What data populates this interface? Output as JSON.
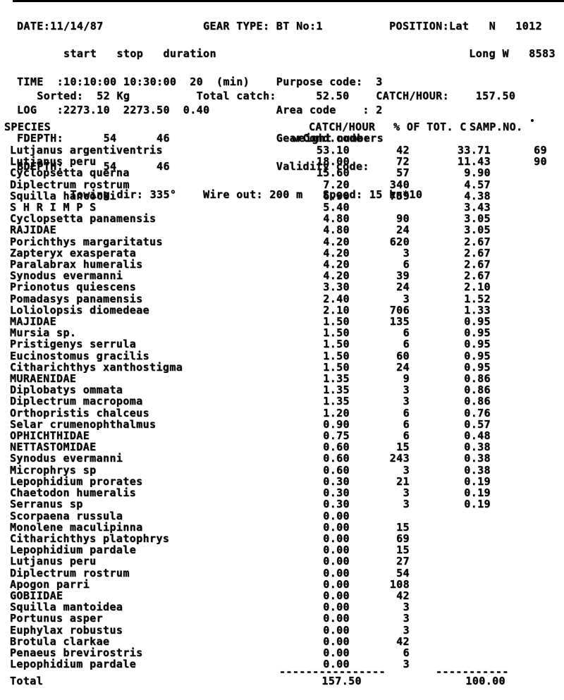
{
  "header": {
    "lines": [
      "DATE:11/14/87               GEAR TYPE: BT No:1          POSITION:Lat   N   1012",
      "       start   stop   duration                                      Long W   8583",
      "TIME  :10:10:00 10:30:00  20  (min)    Purpose code:  3",
      "LOG   :2273.10  2273.50  0.40          Area code    : 2",
      "FDEPTH:      54      46                GearCond.code:",
      "BDEPTH:      54      46                Validity code:",
      "        Towing dir: 335°    Wire out: 200 m   Speed: 15 kn*10"
    ],
    "sorted_line": "   Sorted:  52 Kg          Total catch:      52.50    CATCH/HOUR:    157.50"
  },
  "table": {
    "headers": {
      "species": "SPECIES",
      "catch_hour": "CATCH/HOUR",
      "weight": "weight",
      "numbers": "numbers",
      "pct": "% OF TOT. C",
      "samp": "SAMP.NO."
    },
    "rows": [
      {
        "species": "Lutjanus argentiventris",
        "weight": "53.10",
        "numbers": "42",
        "pct": "33.71",
        "samp": "69"
      },
      {
        "species": "Lutjanus peru",
        "weight": "18.00",
        "numbers": "72",
        "pct": "11.43",
        "samp": "90"
      },
      {
        "species": "Cyclopsetta querna",
        "weight": "15.60",
        "numbers": "57",
        "pct": "9.90",
        "samp": ""
      },
      {
        "species": "Diplectrum rostrum",
        "weight": "7.20",
        "numbers": "340",
        "pct": "4.57",
        "samp": ""
      },
      {
        "species": "Squilla hancocki",
        "weight": "6.90",
        "numbers": "759",
        "pct": "4.38",
        "samp": ""
      },
      {
        "species": "S H R I M P S",
        "weight": "5.40",
        "numbers": "",
        "pct": "3.43",
        "samp": ""
      },
      {
        "species": "Cyclopsetta panamensis",
        "weight": "4.80",
        "numbers": "90",
        "pct": "3.05",
        "samp": ""
      },
      {
        "species": "RAJIDAE",
        "weight": "4.80",
        "numbers": "24",
        "pct": "3.05",
        "samp": ""
      },
      {
        "species": "Porichthys margaritatus",
        "weight": "4.20",
        "numbers": "620",
        "pct": "2.67",
        "samp": ""
      },
      {
        "species": "Zapteryx exasperata",
        "weight": "4.20",
        "numbers": "3",
        "pct": "2.67",
        "samp": ""
      },
      {
        "species": "Paralabrax humeralis",
        "weight": "4.20",
        "numbers": "6",
        "pct": "2.67",
        "samp": ""
      },
      {
        "species": "Synodus evermanni",
        "weight": "4.20",
        "numbers": "39",
        "pct": "2.67",
        "samp": ""
      },
      {
        "species": "Prionotus quiescens",
        "weight": "3.30",
        "numbers": "24",
        "pct": "2.10",
        "samp": ""
      },
      {
        "species": "Pomadasys panamensis",
        "weight": "2.40",
        "numbers": "3",
        "pct": "1.52",
        "samp": ""
      },
      {
        "species": "Loliolopsis diomedeae",
        "weight": "2.10",
        "numbers": "706",
        "pct": "1.33",
        "samp": ""
      },
      {
        "species": "MAJIDAE",
        "weight": "1.50",
        "numbers": "135",
        "pct": "0.95",
        "samp": ""
      },
      {
        "species": "Mursia sp.",
        "weight": "1.50",
        "numbers": "6",
        "pct": "0.95",
        "samp": ""
      },
      {
        "species": "Pristigenys serrula",
        "weight": "1.50",
        "numbers": "6",
        "pct": "0.95",
        "samp": ""
      },
      {
        "species": "Eucinostomus gracilis",
        "weight": "1.50",
        "numbers": "60",
        "pct": "0.95",
        "samp": ""
      },
      {
        "species": "Citharichthys xanthostigma",
        "weight": "1.50",
        "numbers": "24",
        "pct": "0.95",
        "samp": ""
      },
      {
        "species": "MURAENIDAE",
        "weight": "1.35",
        "numbers": "9",
        "pct": "0.86",
        "samp": ""
      },
      {
        "species": "Diplobatys ommata",
        "weight": "1.35",
        "numbers": "3",
        "pct": "0.86",
        "samp": ""
      },
      {
        "species": "Diplectrum macropoma",
        "weight": "1.35",
        "numbers": "3",
        "pct": "0.86",
        "samp": ""
      },
      {
        "species": "Orthopristis chalceus",
        "weight": "1.20",
        "numbers": "6",
        "pct": "0.76",
        "samp": ""
      },
      {
        "species": "Selar crumenophthalmus",
        "weight": "0.90",
        "numbers": "6",
        "pct": "0.57",
        "samp": ""
      },
      {
        "species": "OPHICHTHIDAE",
        "weight": "0.75",
        "numbers": "6",
        "pct": "0.48",
        "samp": ""
      },
      {
        "species": "NETTASTOMIDAE",
        "weight": "0.60",
        "numbers": "15",
        "pct": "0.38",
        "samp": ""
      },
      {
        "species": "Synodus evermanni",
        "weight": "0.60",
        "numbers": "243",
        "pct": "0.38",
        "samp": ""
      },
      {
        "species": "Microphrys sp",
        "weight": "0.60",
        "numbers": "3",
        "pct": "0.38",
        "samp": ""
      },
      {
        "species": "Lepophidium prorates",
        "weight": "0.30",
        "numbers": "21",
        "pct": "0.19",
        "samp": ""
      },
      {
        "species": "Chaetodon humeralis",
        "weight": "0.30",
        "numbers": "3",
        "pct": "0.19",
        "samp": ""
      },
      {
        "species": "Serranus sp",
        "weight": "0.30",
        "numbers": "3",
        "pct": "0.19",
        "samp": ""
      },
      {
        "species": "Scorpaena russula",
        "weight": "0.00",
        "numbers": "",
        "pct": "",
        "samp": ""
      },
      {
        "species": "Monolene maculipinna",
        "weight": "0.00",
        "numbers": "15",
        "pct": "",
        "samp": ""
      },
      {
        "species": "Citharichthys platophrys",
        "weight": "0.00",
        "numbers": "69",
        "pct": "",
        "samp": ""
      },
      {
        "species": "Lepophidium pardale",
        "weight": "0.00",
        "numbers": "15",
        "pct": "",
        "samp": ""
      },
      {
        "species": "Lutjanus peru",
        "weight": "0.00",
        "numbers": "27",
        "pct": "",
        "samp": ""
      },
      {
        "species": "Diplectrum rostrum",
        "weight": "0.00",
        "numbers": "54",
        "pct": "",
        "samp": ""
      },
      {
        "species": "Apogon parri",
        "weight": "0.00",
        "numbers": "108",
        "pct": "",
        "samp": ""
      },
      {
        "species": "GOBIIDAE",
        "weight": "0.00",
        "numbers": "42",
        "pct": "",
        "samp": ""
      },
      {
        "species": "Squilla mantoidea",
        "weight": "0.00",
        "numbers": "3",
        "pct": "",
        "samp": ""
      },
      {
        "species": "Portunus asper",
        "weight": "0.00",
        "numbers": "3",
        "pct": "",
        "samp": ""
      },
      {
        "species": "Euphylax robustus",
        "weight": "0.00",
        "numbers": "3",
        "pct": "",
        "samp": ""
      },
      {
        "species": "Brotula clarkae",
        "weight": "0.00",
        "numbers": "42",
        "pct": "",
        "samp": ""
      },
      {
        "species": "Penaeus brevirostris",
        "weight": "0.00",
        "numbers": "6",
        "pct": "",
        "samp": ""
      },
      {
        "species": "Lepophidium pardale",
        "weight": "0.00",
        "numbers": "3",
        "pct": "",
        "samp": ""
      }
    ],
    "total": {
      "label": "Total",
      "weight": "157.50",
      "pct": "100.00",
      "dash_weight": "----------------",
      "dash_pct": "-----------"
    }
  },
  "ink_color": "#0a0a0a",
  "paper_color": "#ffffff"
}
